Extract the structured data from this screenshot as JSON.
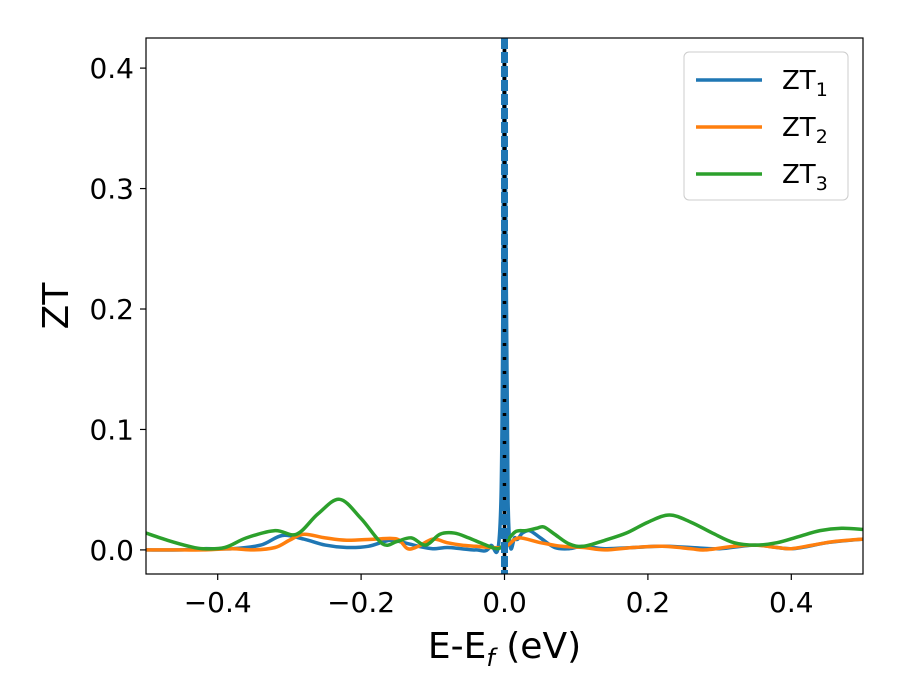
{
  "chart_data": {
    "type": "line",
    "title": "",
    "xlabel": "E-E",
    "xlabel_sub": "f",
    "xlabel_unit": " (eV)",
    "ylabel": "ZT",
    "xlim": [
      -0.5,
      0.5
    ],
    "ylim": [
      -0.02,
      0.425
    ],
    "xticks": [
      -0.4,
      -0.2,
      0.0,
      0.2,
      0.4
    ],
    "xtick_labels": [
      "−0.4",
      "−0.2",
      "0.0",
      "0.2",
      "0.4"
    ],
    "yticks": [
      0.0,
      0.1,
      0.2,
      0.3,
      0.4
    ],
    "ytick_labels": [
      "0.0",
      "0.1",
      "0.2",
      "0.3",
      "0.4"
    ],
    "legend_position": "top-right",
    "series": [
      {
        "name": "ZT",
        "name_sub": "1",
        "color": "#1f77b4",
        "x": [
          -0.5,
          -0.45,
          -0.42,
          -0.38,
          -0.34,
          -0.31,
          -0.28,
          -0.25,
          -0.22,
          -0.19,
          -0.16,
          -0.14,
          -0.12,
          -0.1,
          -0.08,
          -0.06,
          -0.04,
          -0.02,
          -0.005,
          0.0,
          0.005,
          0.015,
          0.025,
          0.035,
          0.05,
          0.07,
          0.09,
          0.11,
          0.14,
          0.18,
          0.22,
          0.26,
          0.3,
          0.35,
          0.4,
          0.45,
          0.5
        ],
        "y": [
          0.0,
          0.0,
          0.001,
          0.001,
          0.004,
          0.012,
          0.009,
          0.004,
          0.002,
          0.003,
          0.008,
          0.006,
          0.003,
          0.001,
          0.002,
          0.001,
          0.0,
          0.003,
          0.04,
          0.42,
          0.04,
          0.01,
          0.014,
          0.016,
          0.01,
          0.002,
          0.001,
          0.003,
          0.001,
          0.002,
          0.003,
          0.002,
          0.001,
          0.004,
          0.001,
          0.006,
          0.009
        ],
        "spike_x": 0.0,
        "spike_style": "dashed"
      },
      {
        "name": "ZT",
        "name_sub": "2",
        "color": "#ff7f0e",
        "x": [
          -0.5,
          -0.45,
          -0.42,
          -0.38,
          -0.35,
          -0.32,
          -0.3,
          -0.28,
          -0.25,
          -0.22,
          -0.18,
          -0.15,
          -0.135,
          -0.12,
          -0.1,
          -0.08,
          -0.06,
          -0.04,
          -0.02,
          -0.005,
          0.005,
          0.02,
          0.05,
          0.08,
          0.11,
          0.14,
          0.18,
          0.22,
          0.26,
          0.28,
          0.32,
          0.35,
          0.38,
          0.4,
          0.43,
          0.46,
          0.5
        ],
        "y": [
          0.0,
          0.0,
          0.0,
          0.001,
          0.0,
          0.002,
          0.008,
          0.013,
          0.01,
          0.008,
          0.009,
          0.009,
          0.001,
          0.003,
          0.009,
          0.006,
          0.004,
          0.003,
          0.002,
          0.002,
          0.004,
          0.01,
          0.006,
          0.003,
          0.002,
          0.0,
          0.002,
          0.003,
          0.001,
          0.0,
          0.003,
          0.004,
          0.002,
          0.001,
          0.004,
          0.007,
          0.009
        ]
      },
      {
        "name": "ZT",
        "name_sub": "3",
        "color": "#2ca02c",
        "x": [
          -0.5,
          -0.47,
          -0.44,
          -0.42,
          -0.39,
          -0.36,
          -0.32,
          -0.29,
          -0.26,
          -0.23,
          -0.2,
          -0.17,
          -0.15,
          -0.13,
          -0.11,
          -0.09,
          -0.07,
          -0.05,
          -0.03,
          -0.01,
          0.0,
          0.015,
          0.03,
          0.045,
          0.055,
          0.07,
          0.09,
          0.11,
          0.14,
          0.17,
          0.2,
          0.23,
          0.26,
          0.29,
          0.32,
          0.35,
          0.38,
          0.41,
          0.44,
          0.47,
          0.5
        ],
        "y": [
          0.014,
          0.008,
          0.003,
          0.001,
          0.002,
          0.01,
          0.016,
          0.013,
          0.03,
          0.042,
          0.026,
          0.005,
          0.007,
          0.01,
          0.004,
          0.013,
          0.014,
          0.01,
          0.005,
          0.001,
          0.005,
          0.015,
          0.016,
          0.018,
          0.019,
          0.013,
          0.005,
          0.003,
          0.008,
          0.014,
          0.023,
          0.029,
          0.023,
          0.014,
          0.006,
          0.004,
          0.006,
          0.011,
          0.016,
          0.018,
          0.017
        ]
      }
    ],
    "reference_line": {
      "x": 0.0,
      "color": "#000000"
    }
  }
}
